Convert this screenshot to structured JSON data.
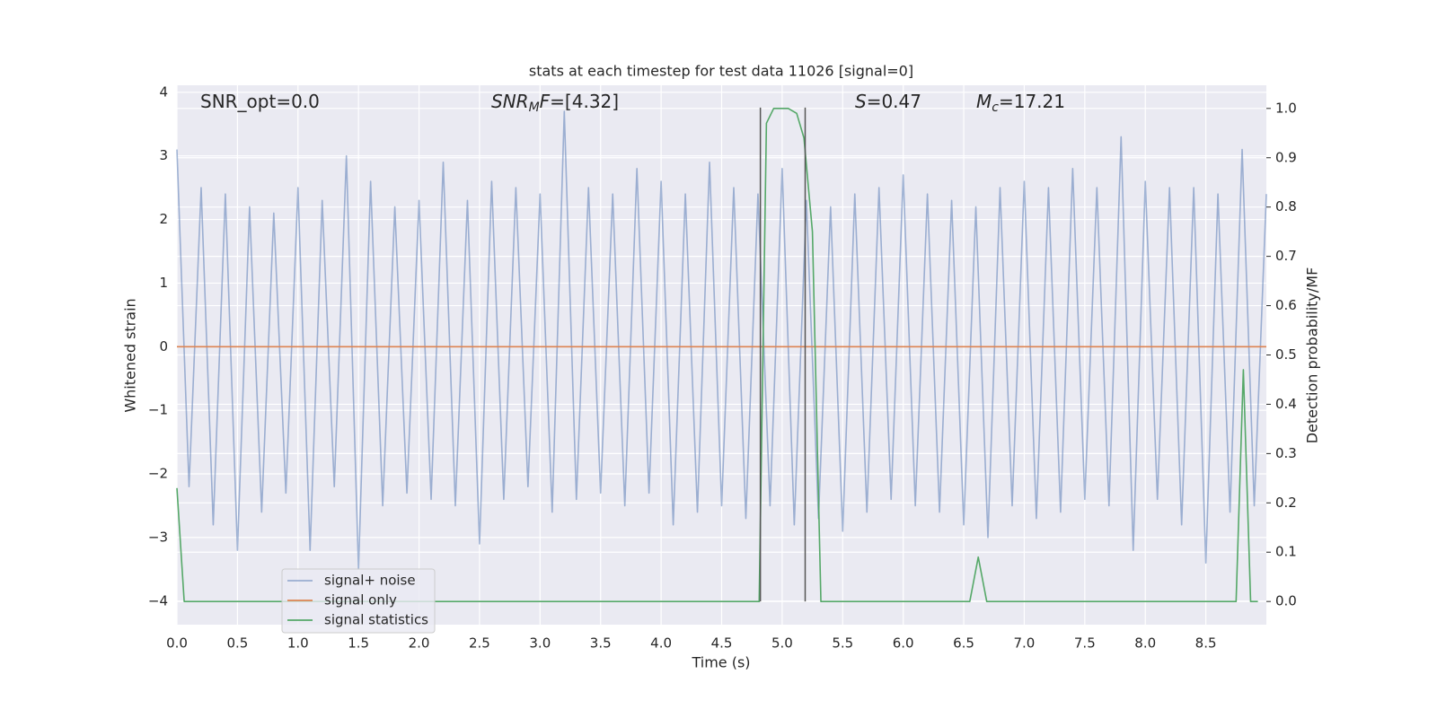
{
  "chart_data": {
    "type": "line",
    "title": "stats at each timestep for test data 11026 [signal=0]",
    "xlabel": "Time (s)",
    "ylabel": "Whitened strain",
    "y2label": "Detection probability/MF",
    "xlim": [
      0,
      9
    ],
    "ylim": [
      -4.37,
      4.11
    ],
    "y2lim": [
      -0.047,
      1.047
    ],
    "grid": true,
    "legend": "lower left",
    "xticks": [
      {
        "value": 0,
        "label": "0.0"
      },
      0.5,
      {
        "value": 1,
        "label": "1.0"
      },
      1.5,
      {
        "value": 2,
        "label": "2.0"
      },
      2.5,
      {
        "value": 3,
        "label": "3.0"
      },
      3.5,
      {
        "value": 4,
        "label": "4.0"
      },
      4.5,
      {
        "value": 5,
        "label": "5.0"
      },
      5.5,
      {
        "value": 6,
        "label": "6.0"
      },
      6.5,
      {
        "value": 7,
        "label": "7.0"
      },
      7.5,
      {
        "value": 8,
        "label": "8.0"
      },
      8.5
    ],
    "yticks": [
      {
        "value": -4,
        "label": "−4"
      },
      {
        "value": -3,
        "label": "−3"
      },
      {
        "value": -2,
        "label": "−2"
      },
      {
        "value": -1,
        "label": "−1"
      },
      0,
      1,
      2,
      3,
      4
    ],
    "y2ticks": [
      {
        "value": 0,
        "label": "0.0"
      },
      0.1,
      0.2,
      0.3,
      0.4,
      0.5,
      0.6,
      0.7,
      0.8,
      0.9,
      {
        "value": 1,
        "label": "1.0"
      }
    ],
    "series": [
      {
        "name": "signal+ noise",
        "color": "#4c72b0",
        "opacity": 0.5,
        "x": [
          0,
          0.1,
          0.2,
          0.3,
          0.4,
          0.5,
          0.6,
          0.7,
          0.8,
          0.9,
          1,
          1.1,
          1.2,
          1.3,
          1.4,
          1.5,
          1.6,
          1.7,
          1.8,
          1.9,
          2,
          2.1,
          2.2,
          2.3,
          2.4,
          2.5,
          2.6,
          2.7,
          2.8,
          2.9,
          3,
          3.1,
          3.2,
          3.3,
          3.4,
          3.5,
          3.6,
          3.7,
          3.8,
          3.9,
          4,
          4.1,
          4.2,
          4.3,
          4.4,
          4.5,
          4.6,
          4.7,
          4.8,
          4.9,
          5,
          5.1,
          5.2,
          5.3,
          5.4,
          5.5,
          5.6,
          5.7,
          5.8,
          5.9,
          6,
          6.1,
          6.2,
          6.3,
          6.4,
          6.5,
          6.6,
          6.7,
          6.8,
          6.9,
          7,
          7.1,
          7.2,
          7.3,
          7.4,
          7.5,
          7.6,
          7.7,
          7.8,
          7.9,
          8,
          8.1,
          8.2,
          8.3,
          8.4,
          8.5,
          8.6,
          8.7,
          8.8,
          8.9,
          9
        ],
        "values": [
          3.1,
          -2.2,
          2.5,
          -2.8,
          2.4,
          -3.2,
          2.2,
          -2.6,
          2.1,
          -2.3,
          2.5,
          -3.2,
          2.3,
          -2.2,
          3.0,
          -3.5,
          2.6,
          -2.5,
          2.2,
          -2.3,
          2.3,
          -2.4,
          2.9,
          -2.5,
          2.3,
          -3.1,
          2.6,
          -2.4,
          2.5,
          -2.2,
          2.4,
          -2.6,
          3.7,
          -2.4,
          2.5,
          -2.3,
          2.4,
          -2.5,
          2.8,
          -2.3,
          2.6,
          -2.8,
          2.4,
          -2.6,
          2.9,
          -2.5,
          2.5,
          -2.7,
          2.4,
          -2.5,
          2.8,
          -2.8,
          2.3,
          -2.7,
          2.2,
          -2.9,
          2.4,
          -2.6,
          2.5,
          -2.4,
          2.7,
          -2.5,
          2.4,
          -2.6,
          2.3,
          -2.8,
          2.2,
          -3.0,
          2.5,
          -2.5,
          2.6,
          -2.7,
          2.5,
          -2.6,
          2.8,
          -2.4,
          2.5,
          -2.5,
          3.3,
          -3.2,
          2.6,
          -2.4,
          2.5,
          -2.8,
          2.5,
          -3.4,
          2.4,
          -2.6,
          3.1,
          -2.5,
          2.4
        ]
      },
      {
        "name": "signal only",
        "color": "#dd8452",
        "x": [
          0,
          9
        ],
        "values": [
          0,
          0
        ]
      },
      {
        "name": "signal statistics",
        "color": "#55a868",
        "axis": "y2",
        "x": [
          0,
          0.06,
          4.81,
          4.87,
          4.93,
          5.05,
          5.12,
          5.18,
          5.25,
          5.32,
          6.55,
          6.62,
          6.69,
          8.75,
          8.81,
          8.87,
          8.93
        ],
        "values": [
          0.23,
          0,
          0,
          0.97,
          1.0,
          1.0,
          0.99,
          0.94,
          0.75,
          0,
          0,
          0.09,
          0,
          0,
          0.47,
          0,
          0
        ]
      }
    ],
    "vlines": [
      4.82,
      5.19
    ],
    "vline_color": "#555555",
    "annotations": [
      [
        {
          "text": "SNR_opt=0.0",
          "style": "normal"
        }
      ],
      [
        {
          "text": "SNR",
          "style": "italic"
        },
        {
          "text": "M",
          "style": "sub"
        },
        {
          "text": "F",
          "style": "italic"
        },
        {
          "text": "=[4.32]",
          "style": "normal"
        }
      ],
      [
        {
          "text": "S",
          "style": "italic"
        },
        {
          "text": "=0.47",
          "style": "normal"
        }
      ],
      [
        {
          "text": "M",
          "style": "italic"
        },
        {
          "text": "c",
          "style": "sub"
        },
        {
          "text": "=17.21",
          "style": "normal"
        }
      ]
    ]
  }
}
